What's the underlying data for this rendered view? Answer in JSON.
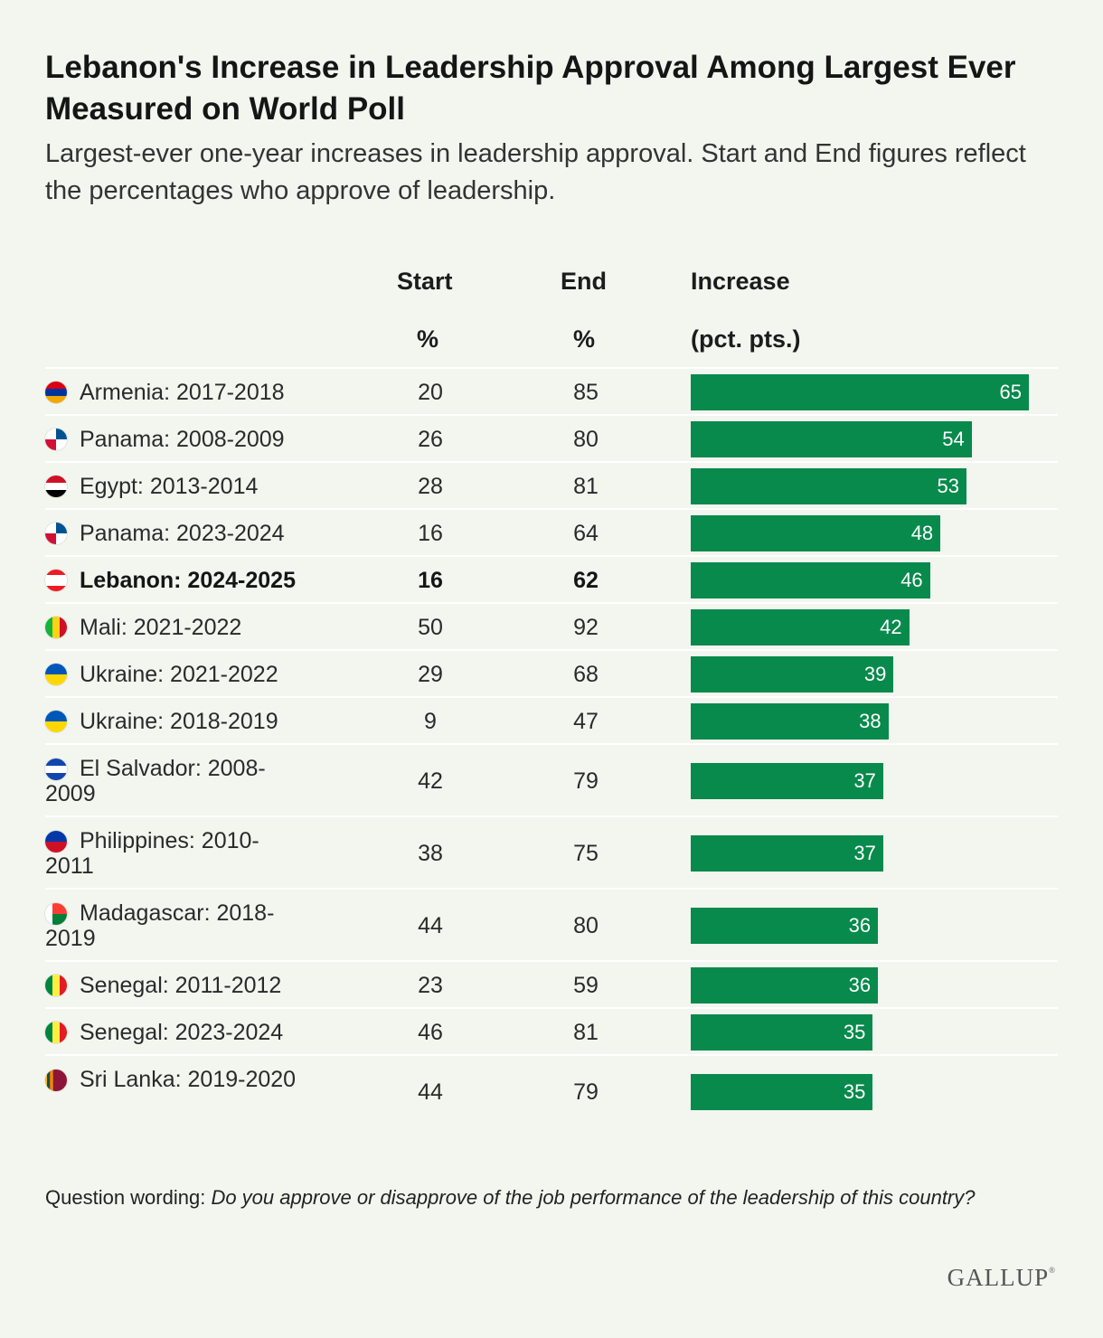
{
  "title": "Lebanon's Increase in Leadership Approval Among Largest Ever Measured on World Poll",
  "subtitle": "Largest-ever one-year increases in leadership approval. Start and End figures reflect the percentages who approve of leadership.",
  "columns": {
    "start": {
      "line1": "Start",
      "line2": "%"
    },
    "end": {
      "line1": "End",
      "line2": "%"
    },
    "increase": {
      "line1": "Increase",
      "line2": "(pct. pts.)"
    }
  },
  "chart_data": {
    "type": "bar",
    "title": "Lebanon's Increase in Leadership Approval Among Largest Ever Measured on World Poll",
    "subtitle": "Largest-ever one-year increases in leadership approval. Start and End figures reflect the percentages who approve of leadership.",
    "xlabel": "Increase (pct. pts.)",
    "ylabel": "",
    "orientation": "horizontal",
    "bar_color": "#078a4c",
    "xlim": [
      0,
      65
    ],
    "rows": [
      {
        "label": "Armenia: 2017-2018",
        "flag": "armenia-flag",
        "start": 20,
        "end": 85,
        "increase": 65,
        "bold": false
      },
      {
        "label": "Panama: 2008-2009",
        "flag": "panama-flag",
        "start": 26,
        "end": 80,
        "increase": 54,
        "bold": false
      },
      {
        "label": "Egypt: 2013-2014",
        "flag": "egypt-flag",
        "start": 28,
        "end": 81,
        "increase": 53,
        "bold": false
      },
      {
        "label": "Panama: 2023-2024",
        "flag": "panama-flag",
        "start": 16,
        "end": 64,
        "increase": 48,
        "bold": false
      },
      {
        "label": "Lebanon: 2024-2025",
        "flag": "lebanon-flag",
        "start": 16,
        "end": 62,
        "increase": 46,
        "bold": true
      },
      {
        "label": "Mali: 2021-2022",
        "flag": "mali-flag",
        "start": 50,
        "end": 92,
        "increase": 42,
        "bold": false
      },
      {
        "label": "Ukraine: 2021-2022",
        "flag": "ukraine-flag",
        "start": 29,
        "end": 68,
        "increase": 39,
        "bold": false
      },
      {
        "label": "Ukraine: 2018-2019",
        "flag": "ukraine-flag",
        "start": 9,
        "end": 47,
        "increase": 38,
        "bold": false
      },
      {
        "label": "El Salvador: 2008-2009",
        "flag": "el-salvador-flag",
        "start": 42,
        "end": 79,
        "increase": 37,
        "bold": false
      },
      {
        "label": "Philippines: 2010-2011",
        "flag": "philippines-flag",
        "start": 38,
        "end": 75,
        "increase": 37,
        "bold": false
      },
      {
        "label": "Madagascar: 2018-2019",
        "flag": "madagascar-flag",
        "start": 44,
        "end": 80,
        "increase": 36,
        "bold": false
      },
      {
        "label": "Senegal: 2011-2012",
        "flag": "senegal-flag",
        "start": 23,
        "end": 59,
        "increase": 36,
        "bold": false
      },
      {
        "label": "Senegal: 2023-2024",
        "flag": "senegal-flag",
        "start": 46,
        "end": 81,
        "increase": 35,
        "bold": false
      },
      {
        "label": "Sri Lanka: 2019-2020",
        "flag": "sri-lanka-flag",
        "start": 44,
        "end": 79,
        "increase": 35,
        "bold": false
      }
    ]
  },
  "footnote": {
    "prefix": "Question wording: ",
    "text": "Do you approve or disapprove of the job performance of the leadership of this country?"
  },
  "brand": "GALLUP",
  "brand_mark": "®"
}
